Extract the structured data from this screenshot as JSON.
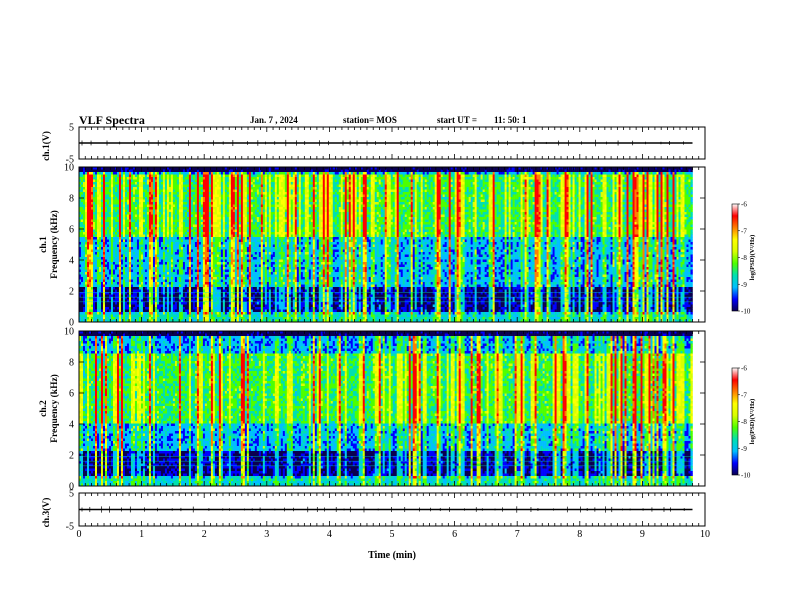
{
  "header": {
    "title": "VLF Spectra",
    "date": "Jan. 7 , 2024",
    "station": "station= MOS",
    "ut_label": "start UT =",
    "ut_value": "11: 50: 1"
  },
  "colors": {
    "axis": "#000000",
    "trace": "#000000",
    "colormap": [
      "#0a0050",
      "#0000ff",
      "#00bfff",
      "#00e0b0",
      "#4dff00",
      "#d8ff00",
      "#ffff00",
      "#ff7f00",
      "#ff0000",
      "#ffffff"
    ]
  },
  "chart_data": [
    {
      "type": "line",
      "panel": "ch1-waveform",
      "ylabel": "ch.1(V)",
      "ylim": [
        -5,
        5
      ],
      "yticks": [
        "5",
        "-5"
      ],
      "xlim": [
        0,
        10
      ],
      "series": [
        {
          "x": [
            0,
            9.8
          ],
          "y": [
            0,
            0
          ]
        }
      ]
    },
    {
      "type": "heatmap",
      "panel": "ch1-spectrogram",
      "ylabel_line1": "ch.1",
      "ylabel_line2": "Frequency (kHz)",
      "ylim": [
        0,
        10
      ],
      "yticks": [
        "0",
        "2",
        "4",
        "6",
        "8",
        "10"
      ],
      "xlim": [
        0,
        10
      ],
      "data_xmax": 9.8,
      "dominant_band_khz": [
        5.5,
        9.5
      ],
      "colorbar": {
        "label": "log(PSD)(V²/Hz)",
        "range": [
          -10,
          -6
        ],
        "ticks": [
          "-10",
          "-9",
          "-8",
          "-7",
          "-6"
        ]
      }
    },
    {
      "type": "heatmap",
      "panel": "ch2-spectrogram",
      "ylabel_line1": "ch.2",
      "ylabel_line2": "Frequency (kHz)",
      "ylim": [
        0,
        10
      ],
      "yticks": [
        "0",
        "2",
        "4",
        "6",
        "8",
        "10"
      ],
      "xlim": [
        0,
        10
      ],
      "data_xmax": 9.8,
      "dominant_band_khz": [
        4.0,
        8.5
      ],
      "colorbar": {
        "label": "log(PSD)(V²/Hz)",
        "range": [
          -10,
          -6
        ],
        "ticks": [
          "-10",
          "-9",
          "-8",
          "-7",
          "-6"
        ]
      }
    },
    {
      "type": "line",
      "panel": "ch3-waveform",
      "ylabel": "ch.3(V)",
      "ylim": [
        -5,
        5
      ],
      "yticks": [
        "5",
        "-5"
      ],
      "xlim": [
        0,
        10
      ],
      "xlabel": "Time (min)",
      "xticks": [
        "0",
        "1",
        "2",
        "3",
        "4",
        "5",
        "6",
        "7",
        "8",
        "9",
        "10"
      ],
      "series": [
        {
          "x": [
            0,
            9.8
          ],
          "y": [
            0,
            0
          ]
        }
      ]
    }
  ]
}
